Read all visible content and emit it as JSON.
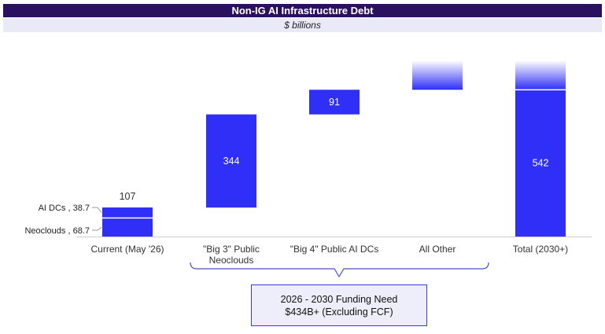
{
  "header": {
    "title": "Non-IG AI Infrastructure Debt",
    "subtitle": "$ billions"
  },
  "chart_data": {
    "type": "bar",
    "subtype": "waterfall",
    "title": "Non-IG AI Infrastructure Debt",
    "subtitle": "$ billions",
    "categories": [
      "Current (May '26)",
      "\"Big 3\" Public Neoclouds",
      "\"Big 4\" Public AI DCs",
      "All Other",
      "Total (2030+)"
    ],
    "bars": [
      {
        "category": "Current (May '26)",
        "start": 0,
        "end": 107,
        "label": "107",
        "label_position": "above",
        "segments": [
          {
            "name": "Neoclouds",
            "value": 68.7,
            "label": "Neoclouds , 68.7"
          },
          {
            "name": "AI DCs",
            "value": 38.7,
            "label": "AI DCs , 38.7"
          }
        ]
      },
      {
        "category": "\"Big 3\" Public Neoclouds",
        "start": 107,
        "end": 451,
        "label": "344",
        "label_position": "inside"
      },
      {
        "category": "\"Big 4\" Public AI DCs",
        "start": 451,
        "end": 542,
        "label": "91",
        "label_position": "inside"
      },
      {
        "category": "All Other",
        "start": 542,
        "end": 650,
        "label": "",
        "style": "gradient-fade"
      },
      {
        "category": "Total (2030+)",
        "start": 0,
        "end": 542,
        "label": "542",
        "label_position": "inside",
        "extension_to": 650,
        "extension_style": "gradient-fade"
      }
    ],
    "ylim": [
      0,
      650
    ],
    "grid": false,
    "colors": {
      "bar": "#2f2ff7",
      "title_bg": "#2b1060",
      "subtitle_bg": "#e9e9f8",
      "bracket": "#4d4dc8"
    },
    "bracket": {
      "from_category": 1,
      "to_category": 3
    },
    "annotation": {
      "line1": "2026 - 2030 Funding Need",
      "line2": "$434B+ (Excluding FCF)"
    }
  }
}
